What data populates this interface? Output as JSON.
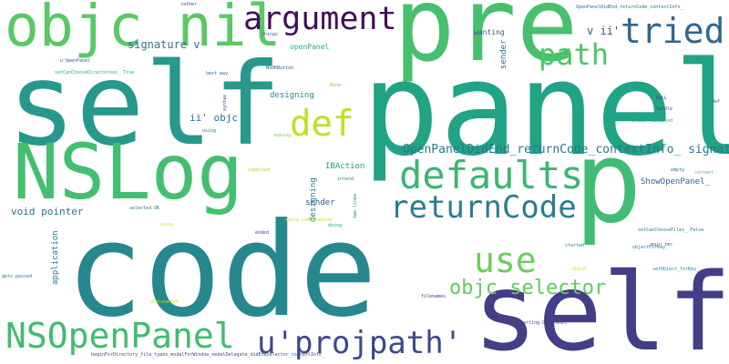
{
  "words": [
    {
      "text": "code",
      "color": "#26888e"
    },
    {
      "text": "panel",
      "color": "#21a385"
    },
    {
      "text": "self",
      "color": "#27988b"
    },
    {
      "text": "self",
      "color": "#433e85"
    },
    {
      "text": "pre",
      "color": "#48bf6d"
    },
    {
      "text": "p",
      "color": "#40bd72"
    },
    {
      "text": "NSLog",
      "color": "#44bf70"
    },
    {
      "text": "objc nil",
      "color": "#5ac864"
    },
    {
      "text": "argument",
      "color": "#440d56"
    },
    {
      "text": "defaults",
      "color": "#3cb574"
    },
    {
      "text": "returnCode",
      "color": "#2a7d8e"
    },
    {
      "text": "NSOpenPanel",
      "color": "#42bb72"
    },
    {
      "text": "u'projpath'",
      "color": "#3e4989"
    },
    {
      "text": "use",
      "color": "#6ccd5a"
    },
    {
      "text": "def",
      "color": "#c2df23"
    },
    {
      "text": "path",
      "color": "#4fc46a"
    },
    {
      "text": "tried",
      "color": "#31678e"
    },
    {
      "text": "objc selector",
      "color": "#62cb5f"
    },
    {
      "text": "OpenPanelDidEnd_returnCode_contextInfo_ signature",
      "color": "#2a778e"
    },
    {
      "text": "signature v",
      "color": "#2c718e"
    },
    {
      "text": "v ii'",
      "color": "#3b528b"
    },
    {
      "text": "ii' objc",
      "color": "#2d708e"
    },
    {
      "text": "void pointer",
      "color": "#2d708e"
    },
    {
      "text": "IBAction",
      "color": "#1f9f88"
    },
    {
      "text": "ShowOpenPanel_",
      "color": "#33638d"
    },
    {
      "text": "openPanel",
      "color": "#26ad81"
    },
    {
      "text": "wanting",
      "color": "#3a548c"
    },
    {
      "text": "sender",
      "color": "#2b758e"
    },
    {
      "text": "designing",
      "color": "#26818e"
    },
    {
      "text": "application",
      "color": "#2a778e"
    },
    {
      "text": "panel",
      "color": "#38588c"
    },
    {
      "text": "far",
      "color": "#23898e"
    },
    {
      "text": "things",
      "color": "#31688e"
    },
    {
      "text": "rather",
      "color": "#3e4a89"
    },
    {
      "text": "OpenPanelDidEnd_returnCode_contextInfo_",
      "color": "#2e6e8e"
    },
    {
      "text": "u'OpenPanel",
      "color": "#3b528b"
    },
    {
      "text": "setCanChooseDirectories_ True",
      "color": "#25ab82"
    },
    {
      "text": "best way",
      "color": "#33638d"
    },
    {
      "text": "NSOKButton",
      "color": "#3a538b"
    },
    {
      "text": "None",
      "color": "#7ad151"
    },
    {
      "text": "using",
      "color": "#2d708e"
    },
    {
      "text": "making",
      "color": "#81d34d"
    },
    {
      "text": "supplied",
      "color": "#a2da37"
    },
    {
      "text": "selected OK",
      "color": "#2d708e"
    },
    {
      "text": "empty",
      "color": "#2d708e"
    },
    {
      "text": "content",
      "color": "#4ac16d"
    },
    {
      "text": "NULL",
      "color": "#3b518b"
    },
    {
      "text": "handle",
      "color": "#3b528b"
    },
    {
      "text": "u'User selected",
      "color": "#26ad81"
    },
    {
      "text": "main tmc",
      "color": "#2c718e"
    },
    {
      "text": "objectForKey_",
      "color": "#287c8e"
    },
    {
      "text": "setCanChooseFiles_ False",
      "color": "#2a768e"
    },
    {
      "text": "setObject_forKey_",
      "color": "#26828e"
    },
    {
      "text": "started",
      "color": "#26828e"
    },
    {
      "text": "intend",
      "color": "#24868e"
    },
    {
      "text": "ended",
      "color": "#3e4989"
    },
    {
      "text": "every combination",
      "color": "#b0dd2f"
    },
    {
      "text": "loose",
      "color": "#d2e21b"
    },
    {
      "text": "third",
      "color": "#bddf26"
    },
    {
      "text": "gets passed",
      "color": "#2d708e"
    },
    {
      "text": "discovered",
      "color": "#cae11f"
    },
    {
      "text": "filenames",
      "color": "#443983"
    },
    {
      "text": "u'Starting OpenPanel",
      "color": "#3e4989"
    },
    {
      "text": "beginForDirectory_file_types_modalForWindow_modalDelegate_didEndSelector_contextInfo_",
      "color": "#3f4788"
    },
    {
      "text": "doing",
      "color": "#1fa287"
    },
    {
      "text": "def",
      "color": "#3b528b"
    },
    {
      "text": "doca",
      "color": "#b5de2b"
    },
    {
      "text": "syntax",
      "color": "#46327e"
    },
    {
      "text": "two lines",
      "color": "#2c718e"
    }
  ]
}
